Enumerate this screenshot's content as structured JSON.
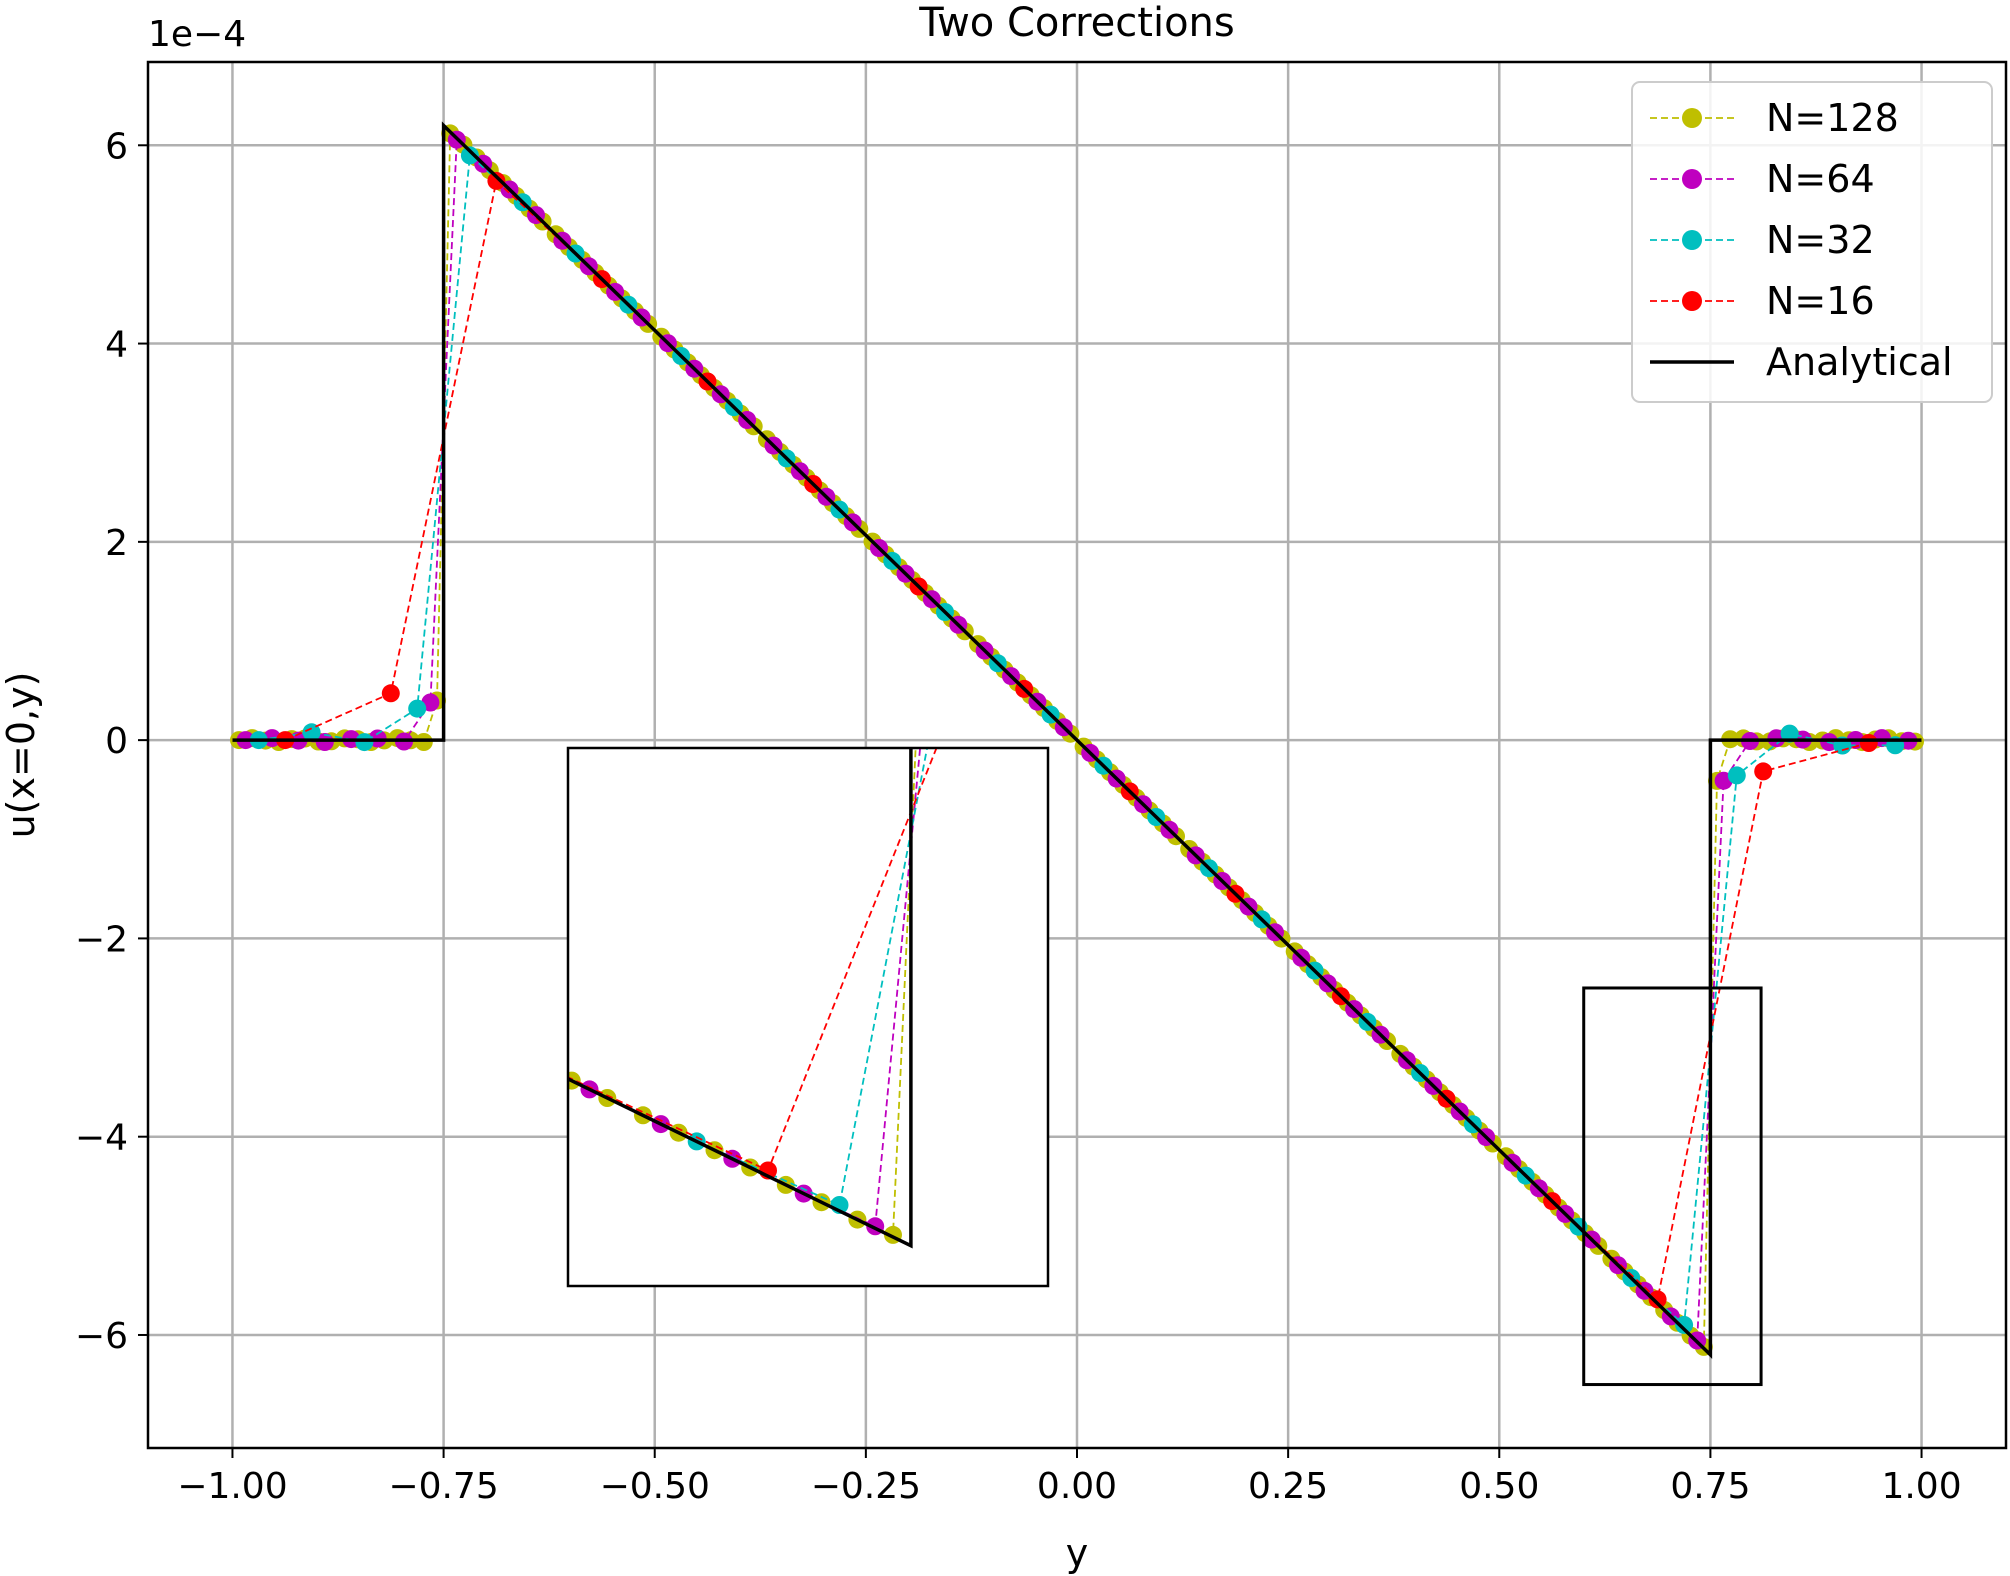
{
  "chart_data": {
    "type": "line",
    "title": "Two Corrections",
    "xlabel": "y",
    "ylabel": "u(x=0,y)",
    "offset_label": "1e−4",
    "xlim": [
      -1.1,
      1.1
    ],
    "ylim": [
      -7.14,
      6.84
    ],
    "xticks": [
      -1.0,
      -0.75,
      -0.5,
      -0.25,
      0.0,
      0.25,
      0.5,
      0.75,
      1.0
    ],
    "xtick_labels": [
      "−1.00",
      "−0.75",
      "−0.50",
      "−0.25",
      "0.00",
      "0.25",
      "0.50",
      "0.75",
      "1.00"
    ],
    "yticks": [
      -6,
      -4,
      -2,
      0,
      2,
      4,
      6
    ],
    "ytick_labels": [
      "−6",
      "−4",
      "−2",
      "0",
      "2",
      "4",
      "6"
    ],
    "grid": true,
    "legend_position": "top-right",
    "series": [
      {
        "name": "N=128",
        "color": "#bfbf00",
        "style": "dashed-marker",
        "n": 128
      },
      {
        "name": "N=64",
        "color": "#bf00bf",
        "style": "dashed-marker",
        "n": 64
      },
      {
        "name": "N=32",
        "color": "#00bfbf",
        "style": "dashed-marker",
        "n": 32
      },
      {
        "name": "N=16",
        "color": "#ff0000",
        "style": "dashed-marker",
        "n": 16
      },
      {
        "name": "Analytical",
        "color": "#000000",
        "style": "solid",
        "x": [
          -1.0,
          -0.75,
          -0.75,
          0.75,
          0.75,
          1.0
        ],
        "y": [
          0,
          0,
          6.2,
          -6.2,
          0,
          0
        ]
      }
    ],
    "highlight_region": {
      "x": [
        0.6,
        0.81
      ],
      "y": [
        -6.5,
        -2.5
      ]
    },
    "inset": {
      "xlim": [
        0.6,
        0.81
      ],
      "ylim": [
        -6.5,
        -2.5
      ]
    }
  }
}
